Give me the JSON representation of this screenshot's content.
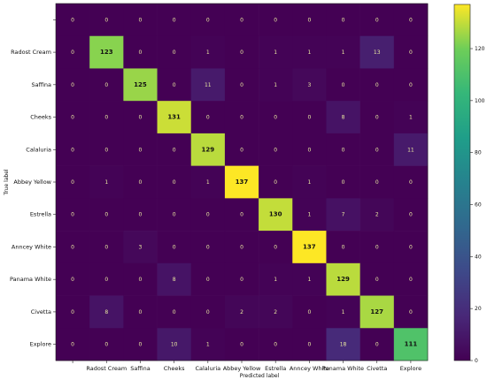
{
  "chart_data": {
    "type": "heatmap",
    "title": "",
    "xlabel": "Predicted label",
    "ylabel": "True label",
    "categories": [
      "",
      "Radost Cream",
      "Saffina",
      "Cheeks",
      "Calaluria",
      "Abbey Yellow",
      "Estrella",
      "Anncey White",
      "Panama White",
      "Civetta",
      "Explore"
    ],
    "x_tick_labels": [
      "Radost Cream",
      "Saffina",
      "Cheeks",
      "Calaluria",
      "Abbey Yellow",
      "Estrella",
      "Anncey White",
      "Panama White",
      "Civetta",
      "Explore"
    ],
    "y_tick_labels": [
      "",
      "Radost Cream",
      "Saffina",
      "Cheeks",
      "Calaluria",
      "Abbey Yellow",
      "Estrella",
      "Anncey White",
      "Panama White",
      "Civetta",
      "Explore"
    ],
    "matrix": [
      [
        0,
        0,
        0,
        0,
        0,
        0,
        0,
        0,
        0,
        0,
        0
      ],
      [
        0,
        123,
        0,
        0,
        1,
        0,
        1,
        1,
        1,
        13,
        0
      ],
      [
        0,
        0,
        125,
        0,
        11,
        0,
        1,
        3,
        0,
        0,
        0
      ],
      [
        0,
        0,
        0,
        131,
        0,
        0,
        0,
        0,
        8,
        0,
        1
      ],
      [
        0,
        0,
        0,
        0,
        129,
        0,
        0,
        0,
        0,
        0,
        11
      ],
      [
        0,
        1,
        0,
        0,
        1,
        137,
        0,
        1,
        0,
        0,
        0
      ],
      [
        0,
        0,
        0,
        0,
        0,
        0,
        130,
        1,
        7,
        2,
        0
      ],
      [
        0,
        0,
        3,
        0,
        0,
        0,
        0,
        137,
        0,
        0,
        0
      ],
      [
        0,
        0,
        0,
        8,
        0,
        0,
        1,
        1,
        129,
        0,
        0
      ],
      [
        0,
        8,
        0,
        0,
        0,
        2,
        2,
        0,
        1,
        127,
        0
      ],
      [
        0,
        0,
        0,
        10,
        1,
        0,
        0,
        0,
        18,
        0,
        111
      ]
    ],
    "colorbar": {
      "range": [
        0,
        137
      ],
      "ticks": [
        0,
        20,
        40,
        60,
        80,
        100,
        120
      ],
      "colormap": "viridis"
    },
    "grid": false
  }
}
